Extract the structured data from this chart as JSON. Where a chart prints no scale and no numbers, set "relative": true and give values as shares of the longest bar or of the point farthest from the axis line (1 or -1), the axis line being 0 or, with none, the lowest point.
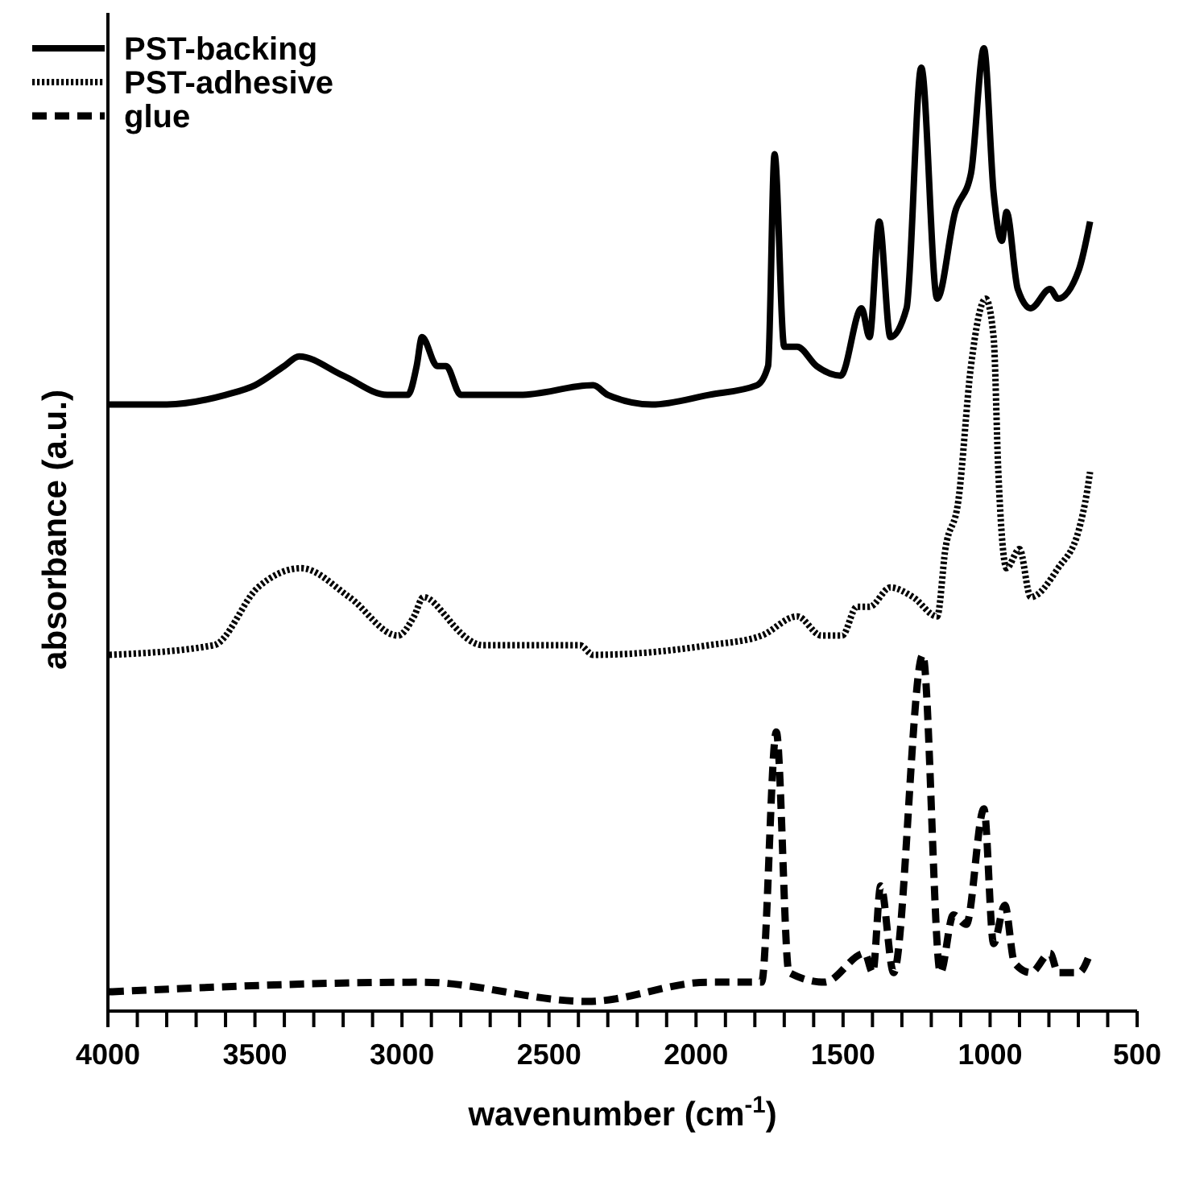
{
  "chart_data": {
    "type": "line",
    "relative": true,
    "xlabel": "wavenumber (cm$^{-1}$)",
    "ylabel": "absorbance (a.u.)",
    "xlim": [
      4000,
      500
    ],
    "xticks": [
      4000,
      {
        "value": 3900,
        "label": null
      },
      {
        "value": 3800,
        "label": null
      },
      {
        "value": 3700,
        "label": null
      },
      {
        "value": 3600,
        "label": null
      },
      3500,
      {
        "value": 3400,
        "label": null
      },
      {
        "value": 3300,
        "label": null
      },
      {
        "value": 3200,
        "label": null
      },
      {
        "value": 3100,
        "label": null
      },
      3000,
      {
        "value": 2900,
        "label": null
      },
      {
        "value": 2800,
        "label": null
      },
      {
        "value": 2700,
        "label": null
      },
      {
        "value": 2600,
        "label": null
      },
      2500,
      {
        "value": 2400,
        "label": null
      },
      {
        "value": 2300,
        "label": null
      },
      {
        "value": 2200,
        "label": null
      },
      {
        "value": 2100,
        "label": null
      },
      2000,
      {
        "value": 1900,
        "label": null
      },
      {
        "value": 1800,
        "label": null
      },
      {
        "value": 1700,
        "label": null
      },
      {
        "value": 1600,
        "label": null
      },
      1500,
      {
        "value": 1400,
        "label": null
      },
      {
        "value": 1300,
        "label": null
      },
      {
        "value": 1200,
        "label": null
      },
      {
        "value": 1100,
        "label": null
      },
      1000,
      {
        "value": 900,
        "label": null
      },
      {
        "value": 800,
        "label": null
      },
      {
        "value": 700,
        "label": null
      },
      {
        "value": 600,
        "label": null
      },
      500
    ],
    "tick_labels": "x",
    "legend": "top left",
    "grid": false,
    "marker": "none",
    "series": [
      {
        "name": "PST-backing",
        "color": "#000000",
        "line_style": "solid",
        "x": [
          4000,
          3800,
          3600,
          3500,
          3400,
          3350,
          3200,
          3050,
          2980,
          2950,
          2932,
          2880,
          2850,
          2800,
          2600,
          2350,
          2300,
          2150,
          1957,
          1793,
          1755,
          1733,
          1700,
          1656,
          1590,
          1508,
          1437,
          1410,
          1377,
          1339,
          1284,
          1234,
          1180,
          1119,
          1065,
          1021,
          988,
          960,
          944,
          906,
          862,
          796,
          769,
          698,
          660
        ],
        "values": [
          0.63,
          0.63,
          0.64,
          0.65,
          0.67,
          0.68,
          0.66,
          0.64,
          0.64,
          0.67,
          0.7,
          0.67,
          0.67,
          0.64,
          0.64,
          0.65,
          0.64,
          0.63,
          0.64,
          0.65,
          0.67,
          0.89,
          0.69,
          0.69,
          0.67,
          0.66,
          0.73,
          0.7,
          0.82,
          0.7,
          0.73,
          0.98,
          0.74,
          0.83,
          0.87,
          1.0,
          0.85,
          0.8,
          0.83,
          0.75,
          0.73,
          0.75,
          0.74,
          0.77,
          0.82
        ]
      },
      {
        "name": "PST-adhesive",
        "color": "#000000",
        "line_style": "dotted",
        "x": [
          3995,
          3640,
          3490,
          3343,
          3179,
          3014,
          2959,
          2927,
          2850,
          2823,
          2724,
          2395,
          2350,
          1957,
          1777,
          1656,
          1574,
          1503,
          1453,
          1410,
          1339,
          1262,
          1180,
          1152,
          1108,
          1065,
          1015,
          988,
          972,
          944,
          900,
          862,
          769,
          698,
          670,
          660
        ],
        "values": [
          0.37,
          0.38,
          0.44,
          0.46,
          0.43,
          0.39,
          0.41,
          0.43,
          0.41,
          0.4,
          0.38,
          0.38,
          0.37,
          0.38,
          0.39,
          0.41,
          0.39,
          0.39,
          0.42,
          0.42,
          0.44,
          0.43,
          0.41,
          0.48,
          0.53,
          0.67,
          0.74,
          0.7,
          0.56,
          0.46,
          0.48,
          0.43,
          0.46,
          0.5,
          0.54,
          0.56
        ]
      },
      {
        "name": "glue",
        "color": "#000000",
        "line_style": "dashed",
        "x": [
          3995,
          2932,
          2368,
          1957,
          1810,
          1777,
          1727,
          1684,
          1563,
          1426,
          1399,
          1372,
          1328,
          1229,
          1169,
          1125,
          1081,
          1021,
          988,
          950,
          917,
          862,
          796,
          769,
          698,
          660
        ],
        "values": [
          0.02,
          0.03,
          0.01,
          0.03,
          0.03,
          0.03,
          0.29,
          0.04,
          0.03,
          0.06,
          0.04,
          0.13,
          0.04,
          0.37,
          0.04,
          0.1,
          0.09,
          0.21,
          0.07,
          0.11,
          0.05,
          0.04,
          0.06,
          0.04,
          0.04,
          0.06
        ]
      }
    ]
  }
}
